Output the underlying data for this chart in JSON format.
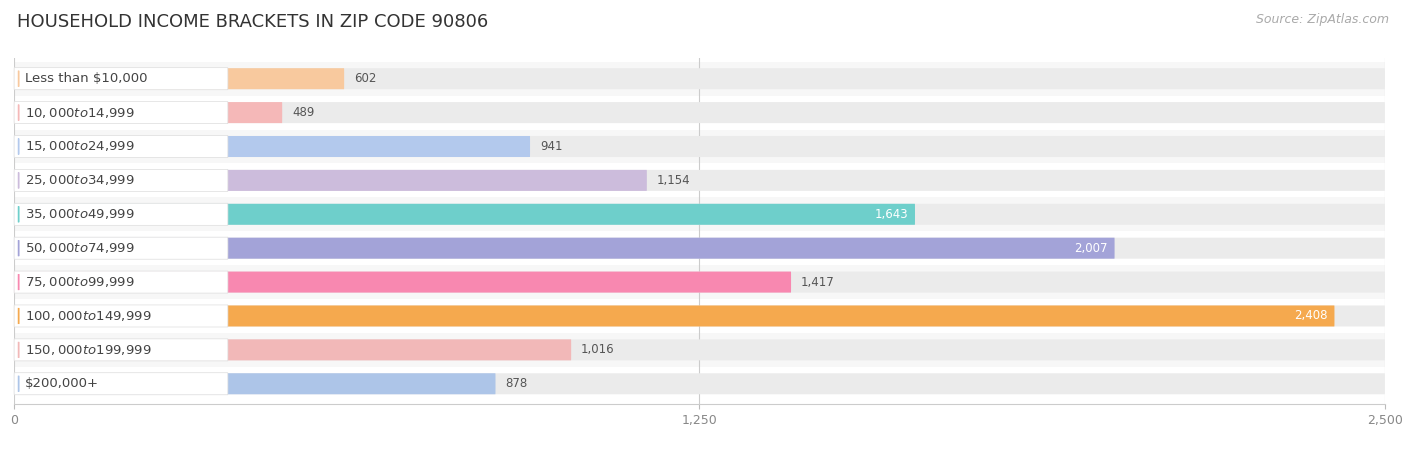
{
  "title": "HOUSEHOLD INCOME BRACKETS IN ZIP CODE 90806",
  "source": "Source: ZipAtlas.com",
  "categories": [
    "Less than $10,000",
    "$10,000 to $14,999",
    "$15,000 to $24,999",
    "$25,000 to $34,999",
    "$35,000 to $49,999",
    "$50,000 to $74,999",
    "$75,000 to $99,999",
    "$100,000 to $149,999",
    "$150,000 to $199,999",
    "$200,000+"
  ],
  "values": [
    602,
    489,
    941,
    1154,
    1643,
    2007,
    1417,
    2408,
    1016,
    878
  ],
  "bar_colors": [
    "#f8c99e",
    "#f5b8b8",
    "#b3c9ed",
    "#ccbcdc",
    "#6ecfcb",
    "#a3a3d8",
    "#f888b0",
    "#f5a94e",
    "#f2b8b8",
    "#adc5e8"
  ],
  "row_bg_colors": [
    "#f7f7f7",
    "#ffffff"
  ],
  "xlim": [
    0,
    2500
  ],
  "xticks": [
    0,
    1250,
    2500
  ],
  "background_color": "#ffffff",
  "track_color": "#ebebeb",
  "title_fontsize": 13,
  "source_fontsize": 9,
  "label_fontsize": 9.5,
  "value_fontsize": 8.5,
  "bar_height": 0.62,
  "value_inside_threshold": 1500
}
